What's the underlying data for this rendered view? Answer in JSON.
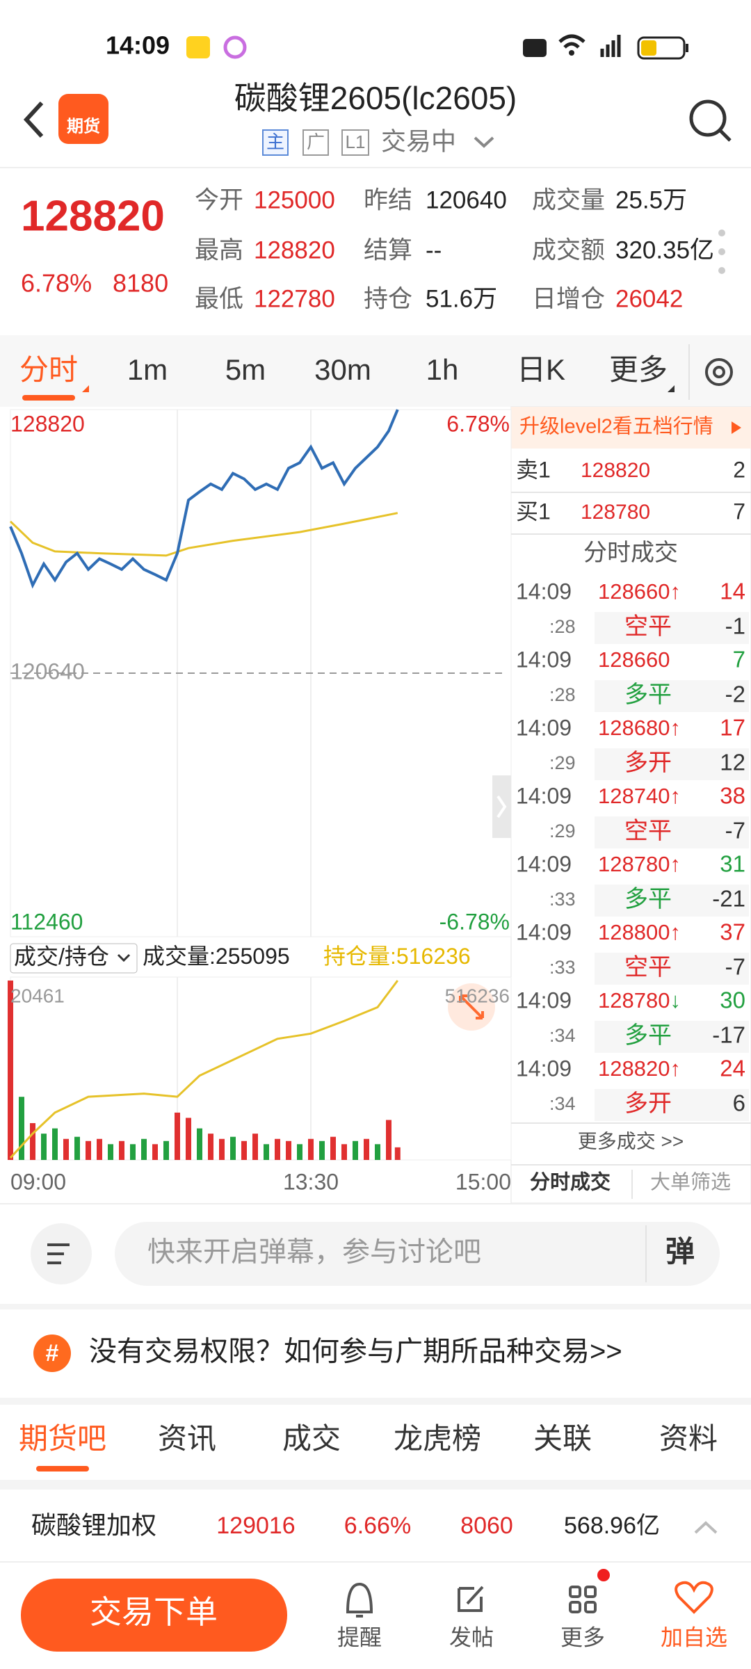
{
  "status_bar": {
    "time": "14:09"
  },
  "header": {
    "logo": "期货",
    "title": "碳酸锂2605(lc2605)",
    "badges": [
      "主",
      "广",
      "L1"
    ],
    "status": "交易中"
  },
  "quote": {
    "price": 128820,
    "change_pct": "6.78%",
    "change": 8180,
    "fields": [
      {
        "label": "今开",
        "value": 125000,
        "color": "#e02828"
      },
      {
        "label": "昨结",
        "value": 120640,
        "color": "#222222"
      },
      {
        "label": "成交量",
        "value": "25.5万",
        "color": "#222222"
      },
      {
        "label": "最高",
        "value": 128820,
        "color": "#e02828"
      },
      {
        "label": "结算",
        "value": "--",
        "color": "#222222"
      },
      {
        "label": "成交额",
        "value": "320.35亿",
        "color": "#222222"
      },
      {
        "label": "最低",
        "value": 122780,
        "color": "#e02828"
      },
      {
        "label": "持仓",
        "value": "51.6万",
        "color": "#222222"
      },
      {
        "label": "日增仓",
        "value": 26042,
        "color": "#e02828"
      }
    ]
  },
  "tabs": {
    "items": [
      "分时",
      "1m",
      "5m",
      "30m",
      "1h",
      "日K",
      "更多"
    ],
    "active": 0
  },
  "chart_data": [
    {
      "type": "line",
      "xlim": [
        0,
        225
      ],
      "xgrid": [
        75,
        135
      ],
      "ylim": [
        112460,
        128820
      ],
      "yticks": [
        112460,
        120640,
        128820
      ],
      "y2lim": [
        -6.78,
        6.78
      ],
      "y2ticks": [
        {
          "value": -6.78,
          "label": "-6.78%"
        },
        {
          "value": 6.78,
          "label": "6.78%"
        }
      ],
      "series": [
        {
          "color": "#2f6db5",
          "x": [
            0,
            5,
            10,
            15,
            20,
            25,
            30,
            35,
            40,
            45,
            50,
            55,
            60,
            65,
            70,
            75,
            80,
            85,
            90,
            95,
            100,
            105,
            110,
            115,
            120,
            125,
            130,
            135,
            140,
            145,
            150,
            155,
            160,
            165,
            170,
            174
          ],
          "values": [
            125190,
            124360,
            123370,
            124030,
            123530,
            124090,
            124360,
            123860,
            124190,
            124030,
            123860,
            124190,
            123860,
            123700,
            123530,
            124360,
            126010,
            126270,
            126510,
            126340,
            126840,
            126670,
            126340,
            126510,
            126340,
            127000,
            127170,
            127660,
            127000,
            127170,
            126510,
            127000,
            127330,
            127660,
            128160,
            128820
          ]
        },
        {
          "color": "#e6c229",
          "x": [
            0,
            10,
            20,
            40,
            70,
            80,
            100,
            130,
            150,
            174
          ],
          "values": [
            125350,
            124690,
            124420,
            124360,
            124290,
            124520,
            124750,
            125020,
            125280,
            125610
          ]
        }
      ]
    },
    {
      "type": "bar",
      "header": {
        "selector": "成交/持仓",
        "volume_label": "成交量:",
        "volume": 255095,
        "oi_label": "持仓量:",
        "oi": 516236
      },
      "xlim": [
        0,
        225
      ],
      "xticks": [
        {
          "value": 0,
          "label": "09:00"
        },
        {
          "value": 135,
          "label": "13:30"
        },
        {
          "value": 225,
          "label": "15:00"
        }
      ],
      "ylim": [
        0,
        20461
      ],
      "y2lim": [
        490000,
        516236
      ],
      "series": [
        {
          "type": "bar",
          "x": [
            0,
            5,
            10,
            15,
            20,
            25,
            30,
            35,
            40,
            45,
            50,
            55,
            60,
            65,
            70,
            75,
            80,
            85,
            90,
            95,
            100,
            105,
            110,
            115,
            120,
            125,
            130,
            135,
            140,
            145,
            150,
            155,
            160,
            165,
            170,
            174
          ],
          "values": [
            20461,
            7200,
            4200,
            3000,
            3600,
            2400,
            2640,
            2160,
            2400,
            1800,
            2160,
            1800,
            2400,
            1800,
            2160,
            5400,
            4800,
            3600,
            3000,
            2400,
            2640,
            2160,
            3000,
            1800,
            2400,
            2160,
            1800,
            2400,
            2160,
            2640,
            1800,
            2160,
            2400,
            1800,
            4560,
            1440
          ],
          "colors": [
            "#e03030",
            "#22a040",
            "#e03030",
            "#22a040",
            "#22a040",
            "#e03030",
            "#22a040",
            "#e03030",
            "#e03030",
            "#22a040",
            "#e03030",
            "#22a040",
            "#22a040",
            "#e03030",
            "#22a040",
            "#e03030",
            "#e03030",
            "#22a040",
            "#e03030",
            "#e03030",
            "#22a040",
            "#e03030",
            "#e03030",
            "#22a040",
            "#e03030",
            "#e03030",
            "#22a040",
            "#e03030",
            "#22a040",
            "#e03030",
            "#e03030",
            "#22a040",
            "#e03030",
            "#22a040",
            "#e03030",
            "#e03030"
          ]
        },
        {
          "axis": "y2",
          "color": "#e6c229",
          "x": [
            0,
            10,
            20,
            35,
            60,
            75,
            85,
            100,
            120,
            135,
            150,
            165,
            174
          ],
          "values": [
            490310,
            493850,
            496930,
            499240,
            499700,
            499240,
            502320,
            504630,
            507710,
            508480,
            510330,
            512330,
            516236
          ]
        }
      ]
    }
  ],
  "order_book": {
    "banner": "升级level2看五档行情",
    "rows": [
      {
        "label": "卖1",
        "price": 128820,
        "volume": 2
      },
      {
        "label": "买1",
        "price": 128780,
        "volume": 7
      }
    ]
  },
  "trades": {
    "title": "分时成交",
    "items": [
      {
        "time": "14:09",
        "sec": ":28",
        "price": 128660,
        "arrow": "↑",
        "volume": 14,
        "type": "空平",
        "change": -1,
        "color": "#e02828"
      },
      {
        "time": "14:09",
        "sec": ":28",
        "price": 128660,
        "volume": 7,
        "type": "多平",
        "change": -2,
        "color": "#22a040"
      },
      {
        "time": "14:09",
        "sec": ":29",
        "price": 128680,
        "arrow": "↑",
        "volume": 17,
        "type": "多开",
        "change": 12,
        "color": "#e02828"
      },
      {
        "time": "14:09",
        "sec": ":29",
        "price": 128740,
        "arrow": "↑",
        "volume": 38,
        "type": "空平",
        "change": -7,
        "color": "#e02828"
      },
      {
        "time": "14:09",
        "sec": ":33",
        "price": 128780,
        "arrow": "↑",
        "volume": 31,
        "type": "多平",
        "change": -21,
        "color": "#22a040"
      },
      {
        "time": "14:09",
        "sec": ":33",
        "price": 128800,
        "arrow": "↑",
        "volume": 37,
        "type": "空平",
        "change": -7,
        "color": "#e02828"
      },
      {
        "time": "14:09",
        "sec": ":34",
        "price": 128780,
        "arrow": "↓",
        "volume": 30,
        "type": "多平",
        "change": -17,
        "color": "#22a040"
      },
      {
        "time": "14:09",
        "sec": ":34",
        "price": 128820,
        "arrow": "↑",
        "volume": 24,
        "type": "多开",
        "change": 6,
        "color": "#e02828"
      }
    ],
    "more": "更多成交 >>",
    "panel_tabs": [
      "分时成交",
      "大单筛选"
    ]
  },
  "danmaku": {
    "placeholder": "快来开启弹幕，参与讨论吧",
    "button": "弹"
  },
  "banner": {
    "icon": "#",
    "text": "没有交易权限？如何参与广期所品种交易>>"
  },
  "bottom_tabs": {
    "items": [
      "期货吧",
      "资讯",
      "成交",
      "龙虎榜",
      "关联",
      "资料"
    ],
    "active": 0
  },
  "weighted": {
    "name": "碳酸锂加权",
    "price": 129016,
    "change_pct": "6.66%",
    "change": 8060,
    "amount": "568.96亿"
  },
  "nav": {
    "button": "交易下单",
    "items": [
      "提醒",
      "发帖",
      "更多",
      "加自选"
    ]
  }
}
